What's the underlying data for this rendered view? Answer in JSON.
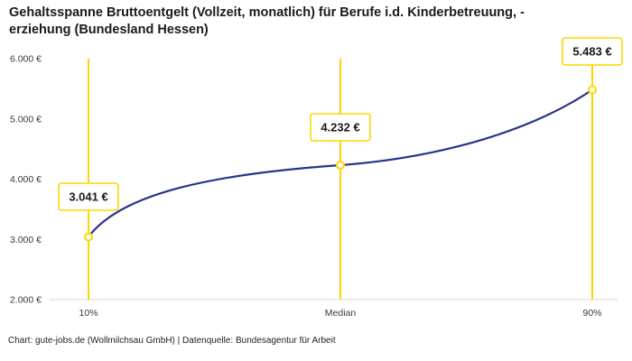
{
  "title": "Gehaltsspanne Bruttoentgelt (Vollzeit, monatlich) für Berufe i.d. Kinderbetreuung, -erziehung (Bundesland Hessen)",
  "title_lines": [
    "Gehaltsspanne Bruttoentgelt (Vollzeit, monatlich) für Berufe i.d. Kinderbetreuung, -",
    "erziehung (Bundesland Hessen)"
  ],
  "footer": "Chart: gute-jobs.de (Wollmilchsau GmbH) | Datenquelle: Bundesagentur für Arbeit",
  "chart_data": {
    "type": "line",
    "categories": [
      "10%",
      "Median",
      "90%"
    ],
    "values": [
      3041,
      4232,
      5483
    ],
    "value_labels": [
      "3.041 €",
      "4.232 €",
      "5.483 €"
    ],
    "ylim": [
      2000,
      6000
    ],
    "yticks": [
      2000,
      3000,
      4000,
      5000,
      6000
    ],
    "ytick_labels": [
      "2.000 €",
      "3.000 €",
      "4.000 €",
      "5.000 €",
      "6.000 €"
    ],
    "title": "Gehaltsspanne Bruttoentgelt (Vollzeit, monatlich) für Berufe i.d. Kinderbetreuung, -erziehung (Bundesland Hessen)",
    "xlabel": "",
    "ylabel": "",
    "grid": false,
    "legend": false,
    "colors": {
      "line": "#27348b",
      "vline": "#ffd500",
      "marker_stroke": "#ffd500",
      "label_border": "#ffd500",
      "label_fill": "#ffffff",
      "text": "#1a1a1a",
      "axis": "#d9d9d9",
      "tick_text": "#3a3a3a"
    }
  }
}
